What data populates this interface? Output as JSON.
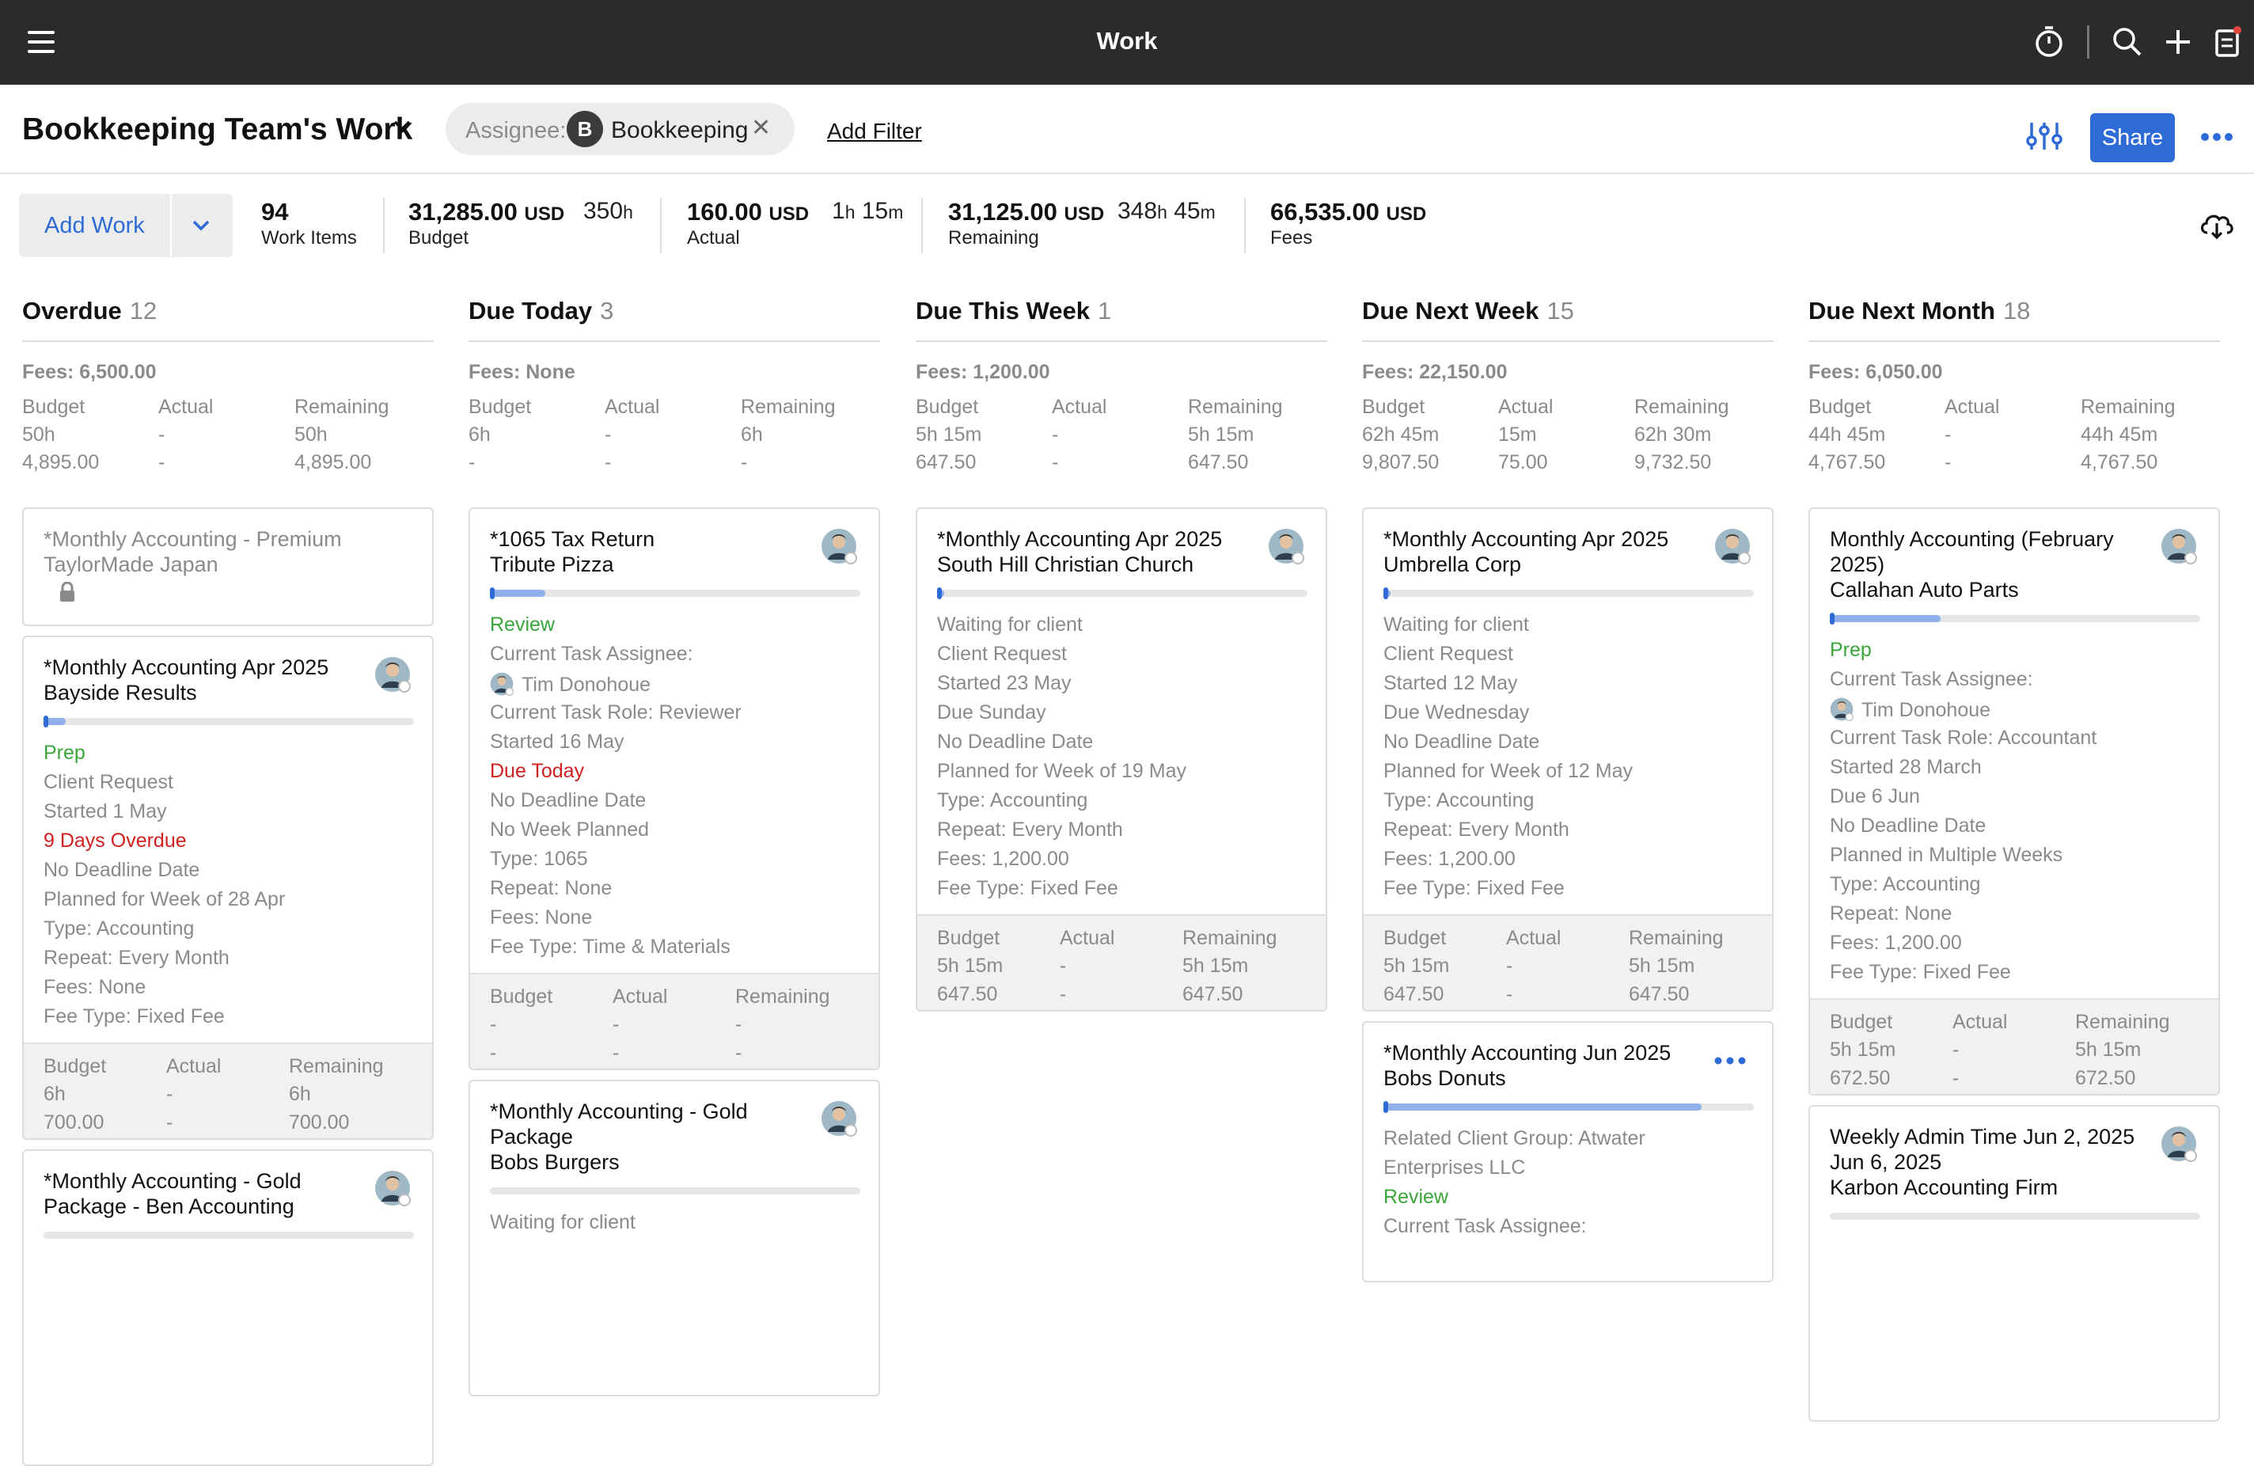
{
  "app": {
    "title": "Work"
  },
  "header": {
    "title": "Bookkeeping Team's Work",
    "filter_label": "Assignee:",
    "filter_avatar_initial": "B",
    "filter_value": "Bookkeeping",
    "add_filter": "Add Filter",
    "share": "Share"
  },
  "stats": {
    "add_work": "Add Work",
    "work_items_value": "94",
    "work_items_label": "Work Items",
    "budget_value": "31,285.00",
    "budget_hours_num": "350",
    "budget_label": "Budget",
    "actual_value": "160.00",
    "actual_h": "1",
    "actual_m": "15",
    "actual_label": "Actual",
    "remaining_value": "31,125.00",
    "remaining_h": "348",
    "remaining_m": "45",
    "remaining_label": "Remaining",
    "fees_value": "66,535.00",
    "fees_label": "Fees",
    "currency": "USD",
    "h_unit": "h",
    "m_unit": "m"
  },
  "labels": {
    "budget": "Budget",
    "actual": "Actual",
    "remaining": "Remaining"
  },
  "columns": [
    {
      "title": "Overdue",
      "count": "12",
      "fees": "Fees: 6,500.00",
      "budget_h": "50h",
      "budget_amt": "4,895.00",
      "actual_h": "-",
      "actual_amt": "-",
      "remaining_h": "50h",
      "remaining_amt": "4,895.00",
      "cards": [
        {
          "title1": "*Monthly Accounting - Premium",
          "title2": "TaylorMade Japan"
        },
        {
          "title1": "*Monthly Accounting Apr 2025",
          "title2": "Bayside Results",
          "progress": 0.06,
          "lines": [
            "Prep",
            "Client Request",
            "Started 1 May",
            "9 Days Overdue",
            "No Deadline Date",
            "Planned for Week of 28 Apr",
            "Type: Accounting",
            "Repeat: Every Month",
            "Fees: None",
            "Fee Type: Fixed Fee"
          ],
          "f_budget_h": "6h",
          "f_budget_amt": "700.00",
          "f_actual_h": "-",
          "f_actual_amt": "-",
          "f_remaining_h": "6h",
          "f_remaining_amt": "700.00"
        },
        {
          "title1": "*Monthly Accounting - Gold",
          "title2": "Package - Ben Accounting"
        }
      ]
    },
    {
      "title": "Due Today",
      "count": "3",
      "fees": "Fees: None",
      "budget_h": "6h",
      "budget_amt": "-",
      "actual_h": "-",
      "actual_amt": "-",
      "remaining_h": "6h",
      "remaining_amt": "-",
      "cards": [
        {
          "title1": "*1065 Tax Return",
          "title2": "Tribute Pizza",
          "progress": 0.15,
          "lines": [
            "Review",
            "Current Task Assignee:",
            "Tim Donohoue",
            "Current Task Role: Reviewer",
            "Started 16 May",
            "Due Today",
            "No Deadline Date",
            "No Week Planned",
            "Type: 1065",
            "Repeat: None",
            "Fees: None",
            "Fee Type: Time & Materials"
          ],
          "f_budget_h": "-",
          "f_budget_amt": "-",
          "f_actual_h": "-",
          "f_actual_amt": "-",
          "f_remaining_h": "-",
          "f_remaining_amt": "-"
        },
        {
          "title1": "*Monthly Accounting - Gold",
          "title2": "Package",
          "title3": "Bobs Burgers",
          "partial_line": "Waiting for client"
        }
      ]
    },
    {
      "title": "Due This Week",
      "count": "1",
      "fees": "Fees: 1,200.00",
      "budget_h": "5h 15m",
      "budget_amt": "647.50",
      "actual_h": "-",
      "actual_amt": "-",
      "remaining_h": "5h 15m",
      "remaining_amt": "647.50",
      "cards": [
        {
          "title1": "*Monthly Accounting Apr 2025",
          "title2": "South Hill Christian Church",
          "progress": 0.01,
          "lines": [
            "Waiting for client",
            "Client Request",
            "Started 23 May",
            "Due Sunday",
            "No Deadline Date",
            "Planned for Week of 19 May",
            "Type: Accounting",
            "Repeat: Every Month",
            "Fees: 1,200.00",
            "Fee Type: Fixed Fee"
          ],
          "f_budget_h": "5h 15m",
          "f_budget_amt": "647.50",
          "f_actual_h": "-",
          "f_actual_amt": "-",
          "f_remaining_h": "5h 15m",
          "f_remaining_amt": "647.50"
        }
      ]
    },
    {
      "title": "Due Next Week",
      "count": "15",
      "fees": "Fees: 22,150.00",
      "budget_h": "62h 45m",
      "budget_amt": "9,807.50",
      "actual_h": "15m",
      "actual_amt": "75.00",
      "remaining_h": "62h 30m",
      "remaining_amt": "9,732.50",
      "cards": [
        {
          "title1": "*Monthly Accounting Apr 2025",
          "title2": "Umbrella Corp",
          "progress": 0.01,
          "lines": [
            "Waiting for client",
            "Client Request",
            "Started 12 May",
            "Due Wednesday",
            "No Deadline Date",
            "Planned for Week of 12 May",
            "Type: Accounting",
            "Repeat: Every Month",
            "Fees: 1,200.00",
            "Fee Type: Fixed Fee"
          ],
          "f_budget_h": "5h 15m",
          "f_budget_amt": "647.50",
          "f_actual_h": "-",
          "f_actual_amt": "-",
          "f_remaining_h": "5h 15m",
          "f_remaining_amt": "647.50"
        },
        {
          "title1": "*Monthly Accounting Jun 2025",
          "title2": "Bobs Donuts",
          "progress": 0.86,
          "lines": [
            "Related Client Group: Atwater",
            "Enterprises LLC",
            "Review",
            "Current Task Assignee:"
          ]
        }
      ]
    },
    {
      "title": "Due Next Month",
      "count": "18",
      "fees": "Fees: 6,050.00",
      "budget_h": "44h 45m",
      "budget_amt": "4,767.50",
      "actual_h": "-",
      "actual_amt": "-",
      "remaining_h": "44h 45m",
      "remaining_amt": "4,767.50",
      "cards": [
        {
          "title1": "Monthly Accounting (February",
          "title2": "2025)",
          "title3": "Callahan Auto Parts",
          "progress": 0.3,
          "lines": [
            "Prep",
            "Current Task Assignee:",
            "Tim Donohoue",
            "Current Task Role: Accountant",
            "Started 28 March",
            "Due 6 Jun",
            "No Deadline Date",
            "Planned in Multiple Weeks",
            "Type: Accounting",
            "Repeat: None",
            "Fees: 1,200.00",
            "Fee Type: Fixed Fee"
          ],
          "f_budget_h": "5h 15m",
          "f_budget_amt": "672.50",
          "f_actual_h": "-",
          "f_actual_amt": "-",
          "f_remaining_h": "5h 15m",
          "f_remaining_amt": "672.50"
        },
        {
          "title1": "Weekly Admin Time Jun 2, 2025",
          "title2": "Jun 6, 2025",
          "title3": "Karbon Accounting Firm"
        }
      ]
    }
  ],
  "colors": {
    "topbar": "#2b2b2b",
    "accent": "#2e6bd6",
    "muted": "#8a8a8a",
    "green": "#3aa53a",
    "red": "#d02020"
  }
}
